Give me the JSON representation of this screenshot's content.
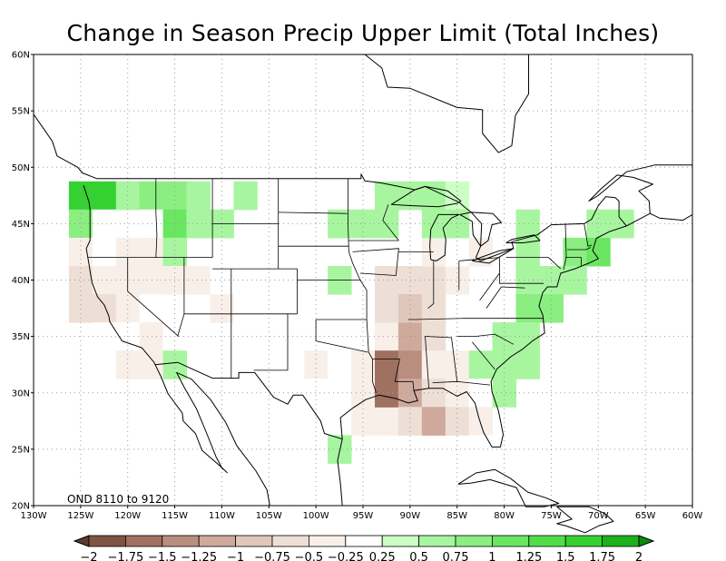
{
  "title": "Change in Season Precip Upper Limit (Total Inches)",
  "run_label": "OND 8110 to 9120",
  "map": {
    "lon_range": [
      -130,
      -60
    ],
    "lat_range": [
      20,
      60
    ],
    "lon_ticks": [
      "130W",
      "125W",
      "120W",
      "115W",
      "110W",
      "105W",
      "100W",
      "95W",
      "90W",
      "85W",
      "80W",
      "75W",
      "70W",
      "65W",
      "60W"
    ],
    "lat_ticks": [
      "20N",
      "25N",
      "30N",
      "35N",
      "40N",
      "45N",
      "50N",
      "55N",
      "60N"
    ]
  },
  "colorbar": {
    "labels": [
      "-2",
      "-1.75",
      "-1.5",
      "-1.25",
      "-1",
      "-0.75",
      "-0.5",
      "-0.25",
      "0.25",
      "0.5",
      "0.75",
      "1",
      "1.25",
      "1.5",
      "1.75",
      "2"
    ],
    "colors": [
      "#5c3b2c",
      "#7f5443",
      "#a07060",
      "#b98e7f",
      "#cfaa9c",
      "#e0c7bc",
      "#eedfd6",
      "#f8efe9",
      "#ffffff",
      "#ccffc4",
      "#a8f5a0",
      "#8aee80",
      "#6ae661",
      "#4fde48",
      "#35d132",
      "#1db21c",
      "#0c8a0c"
    ]
  },
  "chart_data": {
    "type": "heatmap",
    "title": "Change in Season Precip Upper Limit (Total Inches)",
    "annotation": "OND 8110 to 9120",
    "x_range": [
      -130,
      -60
    ],
    "y_range": [
      20,
      60
    ],
    "cell_size_deg": 2.5,
    "cells": [
      [
        -125,
        47.5,
        1.5
      ],
      [
        -122.5,
        47.5,
        1.5
      ],
      [
        -120,
        47.5,
        0.5
      ],
      [
        -117.5,
        47.5,
        0.75
      ],
      [
        -115,
        47.5,
        0.75
      ],
      [
        -112.5,
        47.5,
        0.5
      ],
      [
        -107.5,
        47.5,
        0.5
      ],
      [
        -125,
        45,
        0.75
      ],
      [
        -122.5,
        45,
        -0.25
      ],
      [
        -117.5,
        45,
        -0.25
      ],
      [
        -115,
        45,
        1
      ],
      [
        -112.5,
        45,
        0.5
      ],
      [
        -110,
        45,
        0.5
      ],
      [
        -125,
        42.5,
        -0.5
      ],
      [
        -122.5,
        42.5,
        -0.25
      ],
      [
        -120,
        42.5,
        -0.5
      ],
      [
        -117.5,
        42.5,
        -0.5
      ],
      [
        -115,
        42.5,
        0.5
      ],
      [
        -125,
        40,
        -0.75
      ],
      [
        -122.5,
        40,
        -0.5
      ],
      [
        -120,
        40,
        -0.5
      ],
      [
        -117.5,
        40,
        -0.5
      ],
      [
        -115,
        40,
        -0.5
      ],
      [
        -125,
        37.5,
        -0.75
      ],
      [
        -122.5,
        37.5,
        -0.75
      ],
      [
        -120,
        37.5,
        -0.5
      ],
      [
        -117.5,
        37.5,
        -0.25
      ],
      [
        -122.5,
        35,
        -0.25
      ],
      [
        -120,
        35,
        -0.25
      ],
      [
        -117.5,
        35,
        -0.5
      ],
      [
        -115,
        35,
        -0.25
      ],
      [
        -120,
        32.5,
        -0.5
      ],
      [
        -117.5,
        32.5,
        -0.5
      ],
      [
        -115,
        32.5,
        0.5
      ],
      [
        -112.5,
        40,
        -0.5
      ],
      [
        -110,
        40,
        -0.25
      ],
      [
        -107.5,
        40,
        -0.25
      ],
      [
        -105,
        40,
        -0.25
      ],
      [
        -97.5,
        40,
        0.5
      ],
      [
        -110,
        37.5,
        -0.5
      ],
      [
        -107.5,
        37.5,
        -0.25
      ],
      [
        -105,
        37.5,
        -0.25
      ],
      [
        -110,
        32.5,
        -0.25
      ],
      [
        -107.5,
        32.5,
        -0.25
      ],
      [
        -105,
        32.5,
        -0.25
      ],
      [
        -102.5,
        32.5,
        -0.25
      ],
      [
        -100,
        32.5,
        -0.5
      ],
      [
        -97.5,
        32.5,
        -0.25
      ],
      [
        -102.5,
        30,
        -0.25
      ],
      [
        -100,
        30,
        -0.25
      ],
      [
        -97.5,
        30,
        -0.25
      ],
      [
        -95,
        30,
        -0.5
      ],
      [
        -97.5,
        27.5,
        -0.25
      ],
      [
        -95,
        27.5,
        -0.5
      ],
      [
        -92.5,
        27.5,
        -0.5
      ],
      [
        -97.5,
        25,
        0.5
      ],
      [
        -95,
        35,
        -0.25
      ],
      [
        -92.5,
        35,
        -0.5
      ],
      [
        -90,
        35,
        -1.25
      ],
      [
        -87.5,
        35,
        -0.75
      ],
      [
        -95,
        32.5,
        -0.5
      ],
      [
        -92.5,
        32.5,
        -1.75
      ],
      [
        -90,
        32.5,
        -1.5
      ],
      [
        -87.5,
        32.5,
        -0.5
      ],
      [
        -85,
        32.5,
        -0.5
      ],
      [
        -82.5,
        32.5,
        0.5
      ],
      [
        -95,
        30,
        -0.5
      ],
      [
        -92.5,
        30,
        -1.75
      ],
      [
        -90,
        30,
        -1.25
      ],
      [
        -87.5,
        30,
        -0.75
      ],
      [
        -85,
        30,
        -0.5
      ],
      [
        -82.5,
        30,
        -0.25
      ],
      [
        -80,
        30,
        0.5
      ],
      [
        -90,
        27.5,
        -0.75
      ],
      [
        -87.5,
        27.5,
        -1.25
      ],
      [
        -85,
        27.5,
        -0.75
      ],
      [
        -82.5,
        27.5,
        -0.5
      ],
      [
        -82.5,
        25,
        -0.25
      ],
      [
        -92.5,
        40,
        -0.75
      ],
      [
        -90,
        40,
        -0.75
      ],
      [
        -87.5,
        40,
        -0.75
      ],
      [
        -85,
        40,
        -0.5
      ],
      [
        -92.5,
        37.5,
        -0.75
      ],
      [
        -90,
        37.5,
        -1
      ],
      [
        -87.5,
        37.5,
        -0.75
      ],
      [
        -87.5,
        42.5,
        -0.5
      ],
      [
        -85,
        42.5,
        -0.25
      ],
      [
        -82.5,
        42.5,
        -0.5
      ],
      [
        -92.5,
        47.5,
        0.5
      ],
      [
        -90,
        47.5,
        0.5
      ],
      [
        -87.5,
        47.5,
        0.5
      ],
      [
        -85,
        47.5,
        0.25
      ],
      [
        -92.5,
        45,
        0.5
      ],
      [
        -87.5,
        45,
        0.5
      ],
      [
        -85,
        45,
        0.5
      ],
      [
        -97.5,
        45,
        0.5
      ],
      [
        -95,
        45,
        0.5
      ],
      [
        -77.5,
        45,
        0.5
      ],
      [
        -70,
        45,
        0.5
      ],
      [
        -67.5,
        45,
        0.5
      ],
      [
        -77.5,
        42.5,
        0.5
      ],
      [
        -72.5,
        42.5,
        0.75
      ],
      [
        -70,
        42.5,
        1
      ],
      [
        -77.5,
        40,
        0.5
      ],
      [
        -75,
        40,
        0.5
      ],
      [
        -72.5,
        40,
        0.5
      ],
      [
        -77.5,
        37.5,
        0.75
      ],
      [
        -75,
        37.5,
        0.75
      ],
      [
        -80,
        35,
        0.5
      ],
      [
        -77.5,
        35,
        0.5
      ],
      [
        -80,
        32.5,
        0.5
      ],
      [
        -77.5,
        32.5,
        0.5
      ]
    ]
  }
}
